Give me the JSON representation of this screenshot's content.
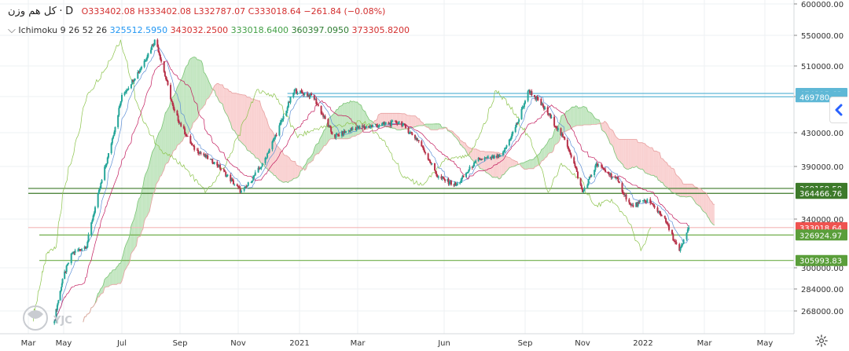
{
  "header": {
    "symbol": "کل هم وزن",
    "interval": "D",
    "open_label": "O",
    "open": "333402.08",
    "high_label": "H",
    "high": "333402.08",
    "low_label": "L",
    "low": "332787.07",
    "close_label": "C",
    "close": "333018.64",
    "change": "−261.84 (−0.08%)",
    "indicator_name": "Ichimoku 9 26 52 26",
    "ind_values": [
      "325512.5950",
      "343032.2500",
      "333018.6400",
      "360397.0950",
      "373305.8200"
    ],
    "ind_colors": [
      "#2196f3",
      "#d32f2f",
      "#43a047",
      "#2e7d32",
      "#d32f2f"
    ]
  },
  "watermark": {
    "text": "YJC"
  },
  "colors": {
    "up": "#26a69a",
    "down": "#b7324a",
    "tenkan": "#5c8fd6",
    "kijun": "#c2185b",
    "chikou": "#8bc34a",
    "cloud_bull": "#b9e2b6",
    "cloud_bear": "#f8c9c9",
    "h_blue": "#5fb8d6",
    "h_green": "#3d8b2f"
  },
  "chart_data": {
    "type": "candlestick",
    "y_axis": {
      "ticks": [
        600000,
        550000,
        510000,
        470000,
        430000,
        390000,
        340000,
        300000,
        284000,
        268000
      ],
      "tick_labels": [
        "600000.00",
        "550000.00",
        "510000.00",
        "470000.00",
        "430000.00",
        "390000.00",
        "340000.00",
        "300000.00",
        "284000.00",
        "268000.00"
      ],
      "scale": "log"
    },
    "x_axis": {
      "labels": [
        "Mar",
        "May",
        "Jul",
        "Sep",
        "Nov",
        "2021",
        "Mar",
        "Jun",
        "Sep",
        "Nov",
        "2022",
        "Mar",
        "May"
      ],
      "label_dates": [
        "2020-03-01",
        "2020-05-01",
        "2020-07-01",
        "2020-09-01",
        "2020-11-01",
        "2021-01-01",
        "2021-03-01",
        "2021-06-01",
        "2021-09-01",
        "2021-11-01",
        "2022-01-01",
        "2022-03-01",
        "2022-05-01"
      ]
    },
    "price_labels": [
      {
        "text": "474115.62",
        "value": 474115.62,
        "color": "#5fb8d6"
      },
      {
        "text": "469780",
        "value": 469780,
        "color": "#5fb8d6"
      },
      {
        "text": "369158.58",
        "value": 369158.58,
        "color": "#3d7a2a"
      },
      {
        "text": "364466.76",
        "value": 364466.76,
        "color": "#3d7a2a"
      },
      {
        "text": "333018.64",
        "value": 333018.64,
        "color": "#ef5350"
      },
      {
        "text": "326924.97",
        "value": 326924.97,
        "color": "#5a9e3a"
      },
      {
        "text": "305993.83",
        "value": 305993.83,
        "color": "#5a9e3a"
      }
    ],
    "price_key": [
      {
        "date": "2020-04-15",
        "value": 262000
      },
      {
        "date": "2020-05-10",
        "value": 312000
      },
      {
        "date": "2020-05-25",
        "value": 318000
      },
      {
        "date": "2020-06-15",
        "value": 395000
      },
      {
        "date": "2020-07-01",
        "value": 470000
      },
      {
        "date": "2020-07-20",
        "value": 505000
      },
      {
        "date": "2020-08-06",
        "value": 545000
      },
      {
        "date": "2020-08-25",
        "value": 455000
      },
      {
        "date": "2020-09-15",
        "value": 412000
      },
      {
        "date": "2020-10-10",
        "value": 392000
      },
      {
        "date": "2020-11-05",
        "value": 365000
      },
      {
        "date": "2020-11-25",
        "value": 392000
      },
      {
        "date": "2020-12-15",
        "value": 445000
      },
      {
        "date": "2020-12-27",
        "value": 478000
      },
      {
        "date": "2021-01-15",
        "value": 470000
      },
      {
        "date": "2021-02-05",
        "value": 425000
      },
      {
        "date": "2021-02-25",
        "value": 435000
      },
      {
        "date": "2021-03-20",
        "value": 438000
      },
      {
        "date": "2021-04-15",
        "value": 442000
      },
      {
        "date": "2021-05-05",
        "value": 420000
      },
      {
        "date": "2021-05-25",
        "value": 380000
      },
      {
        "date": "2021-06-15",
        "value": 372000
      },
      {
        "date": "2021-07-10",
        "value": 398000
      },
      {
        "date": "2021-08-05",
        "value": 402000
      },
      {
        "date": "2021-08-25",
        "value": 445000
      },
      {
        "date": "2021-09-05",
        "value": 478000
      },
      {
        "date": "2021-09-25",
        "value": 452000
      },
      {
        "date": "2021-10-15",
        "value": 418000
      },
      {
        "date": "2021-11-01",
        "value": 365000
      },
      {
        "date": "2021-11-15",
        "value": 392000
      },
      {
        "date": "2021-12-05",
        "value": 378000
      },
      {
        "date": "2021-12-20",
        "value": 352000
      },
      {
        "date": "2022-01-05",
        "value": 358000
      },
      {
        "date": "2022-01-20",
        "value": 343000
      },
      {
        "date": "2022-02-05",
        "value": 313000
      },
      {
        "date": "2022-02-14",
        "value": 333018.64
      }
    ],
    "horizontal_lines": [
      {
        "value": 474115.62,
        "color": "#5fb8d6",
        "from_date": "2020-12-20"
      },
      {
        "value": 469780,
        "color": "#5fb8d6",
        "from_date": "2020-12-20"
      },
      {
        "value": 369158.58,
        "color": "#3d7a2a",
        "from_date": "2020-03-01"
      },
      {
        "value": 364466.76,
        "color": "#3d7a2a",
        "from_date": "2020-03-01"
      },
      {
        "value": 333018.64,
        "color": "#f3b6b6",
        "from_date": "2020-03-01"
      },
      {
        "value": 326924.97,
        "color": "#6fae4a",
        "from_date": "2020-03-20"
      },
      {
        "value": 305993.83,
        "color": "#6fae4a",
        "from_date": "2020-03-20"
      }
    ]
  }
}
